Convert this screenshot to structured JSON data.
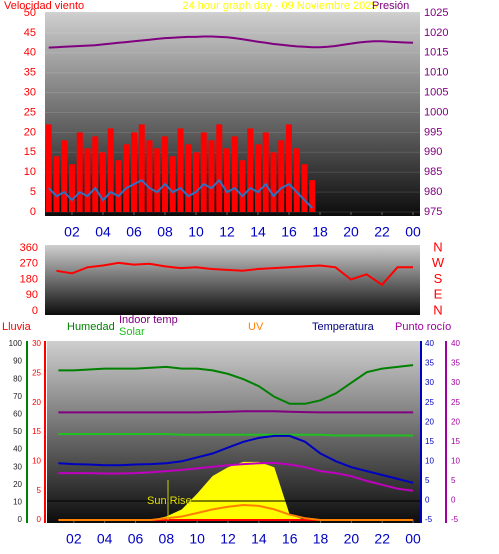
{
  "chart_data": [
    {
      "type": "line",
      "title": "24 hour graph day - 09 Noviembre 2025",
      "ylabel": "Velocidad viento",
      "y2label": "Presión",
      "x": [
        0.5,
        1,
        1.5,
        2,
        2.5,
        3,
        3.5,
        4,
        4.5,
        5,
        5.5,
        6,
        6.5,
        7,
        7.5,
        8,
        8.5,
        9,
        9.5,
        10,
        10.5,
        11,
        11.5,
        12,
        12.5,
        13,
        13.5,
        14,
        14.5,
        15,
        15.5,
        16,
        16.5,
        17,
        17.5,
        18,
        18.5,
        19,
        19.5,
        20,
        20.5,
        21,
        21.5,
        22,
        22.5,
        23,
        23.5,
        24
      ],
      "xlim": [
        0.26,
        24.45
      ],
      "xticks": [
        {
          "value": 2,
          "label": "02"
        },
        {
          "value": 4,
          "label": "04"
        },
        {
          "value": 6,
          "label": "06"
        },
        {
          "value": 8,
          "label": "08"
        },
        10,
        12,
        14,
        16,
        18,
        20,
        22,
        {
          "value": 24,
          "label": "00"
        }
      ],
      "ylim": [
        0,
        50
      ],
      "yticks": [
        0,
        5,
        10,
        15,
        20,
        25,
        30,
        35,
        40,
        45,
        50
      ],
      "y2lim": [
        975,
        1025
      ],
      "y2ticks": [
        975,
        980,
        985,
        990,
        995,
        1000,
        1005,
        1010,
        1015,
        1020,
        1025
      ],
      "grid": true,
      "series": [
        {
          "color": "#ff0000",
          "style": "bar",
          "values": [
            22,
            14,
            18,
            12,
            20,
            16,
            19,
            15,
            21,
            13,
            17,
            20,
            22,
            18,
            16,
            19,
            14,
            21,
            17,
            15,
            20,
            18,
            22,
            16,
            19,
            13,
            21,
            17,
            20,
            15,
            18,
            22,
            16,
            12,
            8,
            null,
            null,
            null,
            null,
            null,
            null,
            null,
            null,
            null,
            null,
            null,
            null,
            null
          ]
        },
        {
          "color": "#3070c0",
          "values": [
            6,
            4,
            5,
            3,
            5,
            4,
            6,
            3,
            5,
            4,
            6,
            7,
            8,
            6,
            5,
            7,
            5,
            6,
            4,
            5,
            7,
            6,
            8,
            5,
            6,
            4,
            6,
            5,
            7,
            4,
            6,
            7,
            5,
            3,
            1,
            null,
            null,
            null,
            null,
            null,
            null,
            null,
            null,
            null,
            null,
            null,
            null,
            null
          ]
        },
        {
          "color": "#800080",
          "axis": "y2",
          "values": [
            1016.3,
            1016.4,
            1016.5,
            1016.6,
            1016.7,
            1016.8,
            1016.9,
            1017.1,
            1017.3,
            1017.5,
            1017.7,
            1017.9,
            1018.1,
            1018.3,
            1018.5,
            1018.7,
            1018.8,
            1018.9,
            1019,
            1019,
            1019.1,
            1019.1,
            1019,
            1018.9,
            1018.7,
            1018.4,
            1018.1,
            1017.8,
            1017.5,
            1017.2,
            1017,
            1016.8,
            1016.6,
            1016.5,
            1016.4,
            1016.4,
            1016.5,
            1016.7,
            1017,
            1017.3,
            1017.6,
            1017.8,
            1017.9,
            1017.9,
            1017.8,
            1017.7,
            1017.6,
            1017.5
          ]
        }
      ]
    },
    {
      "type": "line",
      "x": [
        1,
        2,
        3,
        4,
        5,
        6,
        7,
        8,
        9,
        10,
        11,
        12,
        13,
        14,
        15,
        16,
        17,
        18,
        19,
        20,
        21,
        22,
        23,
        24
      ],
      "xlim": [
        0.26,
        24.45
      ],
      "ylim": [
        0,
        360
      ],
      "yticks": [
        0,
        90,
        180,
        270,
        360
      ],
      "y2lim": [
        0,
        360
      ],
      "y2ticks": [
        {
          "value": 0,
          "label": "N"
        },
        {
          "value": 90,
          "label": "E"
        },
        {
          "value": 180,
          "label": "S"
        },
        {
          "value": 270,
          "label": "W"
        },
        {
          "value": 360,
          "label": "N"
        }
      ],
      "series": [
        {
          "color": "#ff0000",
          "values": [
            230,
            215,
            250,
            260,
            275,
            265,
            270,
            255,
            245,
            250,
            240,
            235,
            230,
            240,
            245,
            250,
            255,
            260,
            250,
            180,
            210,
            150,
            250,
            250
          ]
        }
      ]
    },
    {
      "type": "line",
      "annotation": "Sun Rise",
      "x": [
        1,
        2,
        3,
        4,
        5,
        6,
        7,
        8,
        9,
        10,
        11,
        12,
        13,
        14,
        15,
        16,
        17,
        18,
        19,
        20,
        21,
        22,
        23,
        24
      ],
      "xlim": [
        0.26,
        24.45
      ],
      "xticks": [
        {
          "value": 2,
          "label": "02"
        },
        {
          "value": 4,
          "label": "04"
        },
        {
          "value": 6,
          "label": "06"
        },
        {
          "value": 8,
          "label": "08"
        },
        10,
        12,
        14,
        16,
        18,
        20,
        22,
        {
          "value": 24,
          "label": "00"
        }
      ],
      "ylim": [
        0,
        100
      ],
      "yticks": [
        0,
        10,
        20,
        30,
        40,
        50,
        60,
        70,
        80,
        90,
        100
      ],
      "y2lim": [
        0,
        30
      ],
      "y2ticks": [
        0,
        5,
        10,
        15,
        20,
        25,
        30
      ],
      "y3lim": [
        -5,
        40
      ],
      "y3ticks": [
        -5,
        0,
        5,
        10,
        15,
        20,
        25,
        30,
        35,
        40
      ],
      "y4lim": [
        -5,
        40
      ],
      "y4ticks": [
        -5,
        0,
        5,
        10,
        15,
        20,
        25,
        30,
        35,
        40
      ],
      "series": [
        {
          "name": "Solar",
          "color": "#ffff00",
          "style": "area",
          "values": [
            0,
            0,
            0,
            0,
            0,
            0,
            0,
            2,
            6,
            15,
            25,
            30,
            33,
            33,
            30,
            3,
            0,
            0,
            0,
            0,
            0,
            0,
            0,
            0
          ]
        },
        {
          "name": "Lluvia",
          "color": "#ff0000",
          "axis": "y2",
          "values": [
            0,
            0,
            0,
            0,
            0,
            0,
            0,
            0,
            0,
            0,
            0,
            0,
            0,
            0,
            0,
            0,
            0,
            0,
            0,
            0,
            0,
            0,
            0,
            0
          ]
        },
        {
          "name": "Humedad",
          "color": "#008000",
          "values": [
            85,
            85,
            85.5,
            86,
            86,
            86,
            86.5,
            87,
            86,
            86,
            85,
            83,
            80,
            76,
            70,
            66,
            66,
            68,
            72,
            78,
            84,
            86,
            87,
            88
          ]
        },
        {
          "name": "Indoor temp",
          "color": "#800080",
          "axis": "y3",
          "values": [
            22.5,
            22.5,
            22.5,
            22.5,
            22.5,
            22.5,
            22.5,
            22.5,
            22.5,
            22.5,
            22.6,
            22.7,
            22.8,
            22.8,
            22.8,
            22.7,
            22.6,
            22.5,
            22.5,
            22.5,
            22.5,
            22.5,
            22.5,
            22.5
          ]
        },
        {
          "color": "#20c020",
          "axis": "y3",
          "values": [
            17,
            17,
            17,
            17,
            17,
            17,
            17,
            17,
            16.8,
            16.8,
            16.8,
            16.8,
            16.8,
            16.8,
            16.8,
            16.8,
            16.8,
            16.8,
            16.6,
            16.6,
            16.6,
            16.6,
            16.6,
            16.6
          ]
        },
        {
          "name": "UV",
          "color": "#ff8000",
          "values": [
            0,
            0,
            0,
            0,
            0,
            0,
            0,
            1,
            2,
            4,
            6,
            7.5,
            8.5,
            8,
            6,
            3,
            1,
            0,
            0,
            0,
            0,
            0,
            0,
            0
          ]
        },
        {
          "name": "Temperatura",
          "color": "#0000c0",
          "axis": "y3",
          "values": [
            9.5,
            9.3,
            9.2,
            9,
            9,
            9.2,
            9.3,
            9.5,
            10,
            11,
            12,
            13.5,
            15,
            16,
            16.5,
            16.5,
            15,
            12,
            10,
            8.5,
            7.5,
            6.5,
            5.5,
            4.5
          ]
        },
        {
          "name": "Punto rocío",
          "color": "#c000c0",
          "axis": "y4",
          "values": [
            7,
            7,
            7,
            6.9,
            6.9,
            7,
            7.2,
            7.5,
            7.8,
            8.2,
            8.6,
            9,
            9.3,
            9.5,
            9.6,
            9.2,
            8.5,
            7.5,
            7,
            6.2,
            5,
            4,
            3,
            2.5
          ]
        }
      ]
    }
  ]
}
